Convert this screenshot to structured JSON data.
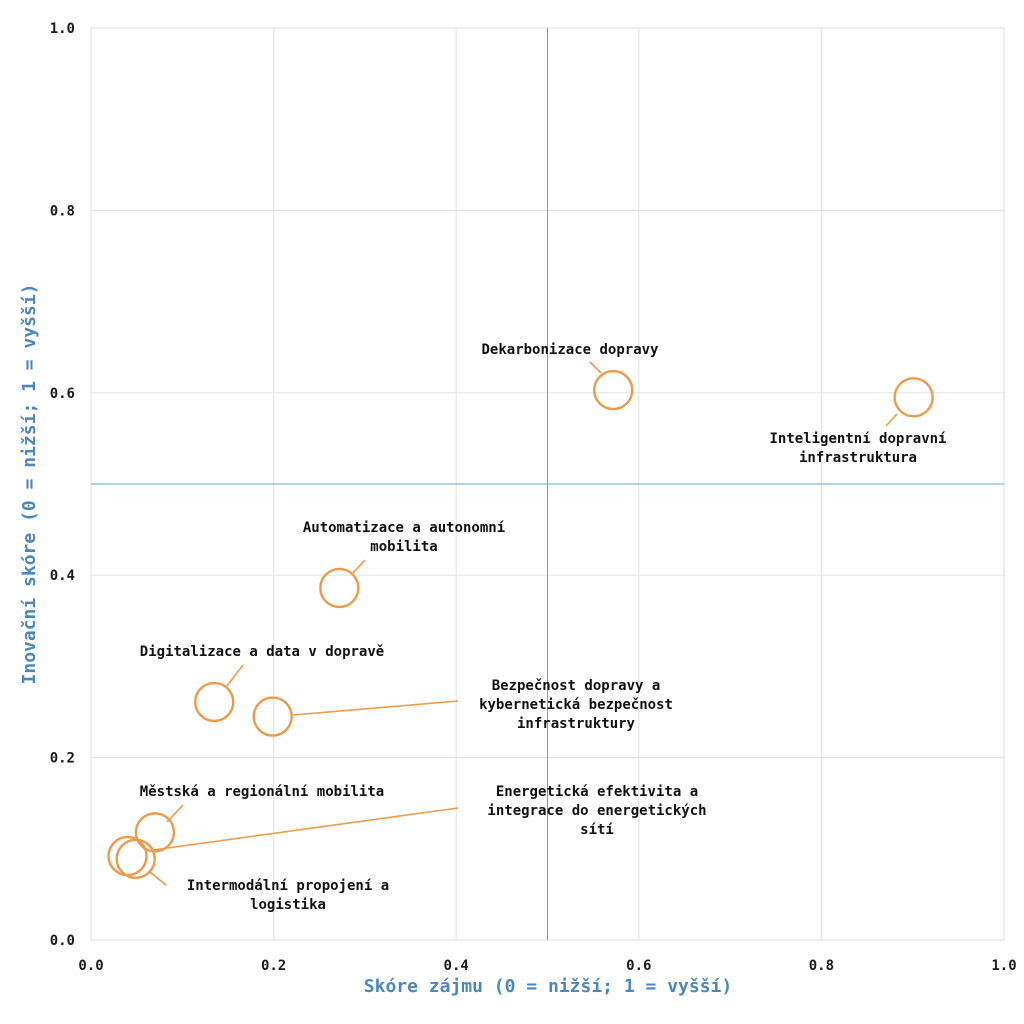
{
  "colors": {
    "marker": "#ef9a4a",
    "grid": "#e6e6e6",
    "quadrant_line": "#6aa0cc",
    "axis_title": "#4a86c0",
    "text": "#111111"
  },
  "chart_data": {
    "type": "scatter",
    "xlabel": "Skóre zájmu (0 = nižší; 1 = vyšší)",
    "ylabel": "Inovační skóre (0 = nižší; 1 = vyšší)",
    "xlim": [
      0,
      1
    ],
    "ylim": [
      0,
      1
    ],
    "x_ticks": [
      "0.0",
      "0.2",
      "0.4",
      "0.6",
      "0.8",
      "1.0"
    ],
    "y_ticks": [
      "0.0",
      "0.2",
      "0.4",
      "0.6",
      "0.8",
      "1.0"
    ],
    "grid": true,
    "quadrant_lines": {
      "x": 0.5,
      "y": 0.5
    },
    "points": [
      {
        "label": [
          "Dekarbonizace dopravy"
        ],
        "x": 0.572,
        "y": 0.603
      },
      {
        "label": [
          "Inteligentní dopravní",
          "infrastruktura"
        ],
        "x": 0.901,
        "y": 0.595
      },
      {
        "label": [
          "Automatizace a autonomní",
          "mobilita"
        ],
        "x": 0.272,
        "y": 0.386
      },
      {
        "label": [
          "Digitalizace a data v dopravě"
        ],
        "x": 0.135,
        "y": 0.261
      },
      {
        "label": [
          "Bezpečnost dopravy a",
          "kybernetická bezpečnost",
          "infrastruktury"
        ],
        "x": 0.199,
        "y": 0.245
      },
      {
        "label": [
          "Městská a regionální mobilita"
        ],
        "x": 0.07,
        "y": 0.118
      },
      {
        "label": [
          "Energetická efektivita a",
          "integrace do energetických",
          "sítí"
        ],
        "x": 0.04,
        "y": 0.092
      },
      {
        "label": [
          "Intermodální propojení a",
          "logistika"
        ],
        "x": 0.049,
        "y": 0.089
      }
    ]
  }
}
